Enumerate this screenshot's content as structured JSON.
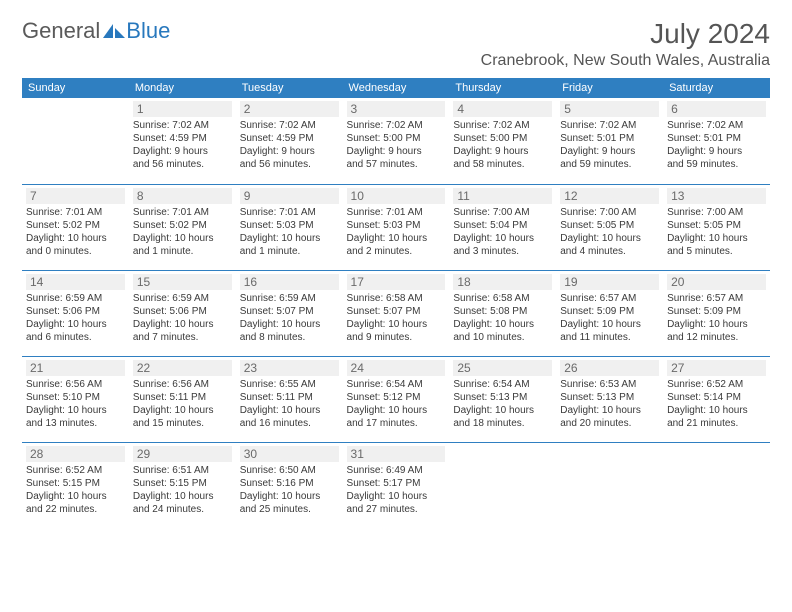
{
  "brand": {
    "name1": "General",
    "name2": "Blue"
  },
  "title": "July 2024",
  "location": "Cranebrook, New South Wales, Australia",
  "colors": {
    "header_bg": "#2f7fc1",
    "header_text": "#ffffff",
    "daynum_bg": "#f0f0f0",
    "border": "#2f7fc1",
    "brand_blue": "#2878bd",
    "text": "#333333"
  },
  "weekdays": [
    "Sunday",
    "Monday",
    "Tuesday",
    "Wednesday",
    "Thursday",
    "Friday",
    "Saturday"
  ],
  "weeks": [
    [
      null,
      {
        "n": "1",
        "sr": "Sunrise: 7:02 AM",
        "ss": "Sunset: 4:59 PM",
        "dl1": "Daylight: 9 hours",
        "dl2": "and 56 minutes."
      },
      {
        "n": "2",
        "sr": "Sunrise: 7:02 AM",
        "ss": "Sunset: 4:59 PM",
        "dl1": "Daylight: 9 hours",
        "dl2": "and 56 minutes."
      },
      {
        "n": "3",
        "sr": "Sunrise: 7:02 AM",
        "ss": "Sunset: 5:00 PM",
        "dl1": "Daylight: 9 hours",
        "dl2": "and 57 minutes."
      },
      {
        "n": "4",
        "sr": "Sunrise: 7:02 AM",
        "ss": "Sunset: 5:00 PM",
        "dl1": "Daylight: 9 hours",
        "dl2": "and 58 minutes."
      },
      {
        "n": "5",
        "sr": "Sunrise: 7:02 AM",
        "ss": "Sunset: 5:01 PM",
        "dl1": "Daylight: 9 hours",
        "dl2": "and 59 minutes."
      },
      {
        "n": "6",
        "sr": "Sunrise: 7:02 AM",
        "ss": "Sunset: 5:01 PM",
        "dl1": "Daylight: 9 hours",
        "dl2": "and 59 minutes."
      }
    ],
    [
      {
        "n": "7",
        "sr": "Sunrise: 7:01 AM",
        "ss": "Sunset: 5:02 PM",
        "dl1": "Daylight: 10 hours",
        "dl2": "and 0 minutes."
      },
      {
        "n": "8",
        "sr": "Sunrise: 7:01 AM",
        "ss": "Sunset: 5:02 PM",
        "dl1": "Daylight: 10 hours",
        "dl2": "and 1 minute."
      },
      {
        "n": "9",
        "sr": "Sunrise: 7:01 AM",
        "ss": "Sunset: 5:03 PM",
        "dl1": "Daylight: 10 hours",
        "dl2": "and 1 minute."
      },
      {
        "n": "10",
        "sr": "Sunrise: 7:01 AM",
        "ss": "Sunset: 5:03 PM",
        "dl1": "Daylight: 10 hours",
        "dl2": "and 2 minutes."
      },
      {
        "n": "11",
        "sr": "Sunrise: 7:00 AM",
        "ss": "Sunset: 5:04 PM",
        "dl1": "Daylight: 10 hours",
        "dl2": "and 3 minutes."
      },
      {
        "n": "12",
        "sr": "Sunrise: 7:00 AM",
        "ss": "Sunset: 5:05 PM",
        "dl1": "Daylight: 10 hours",
        "dl2": "and 4 minutes."
      },
      {
        "n": "13",
        "sr": "Sunrise: 7:00 AM",
        "ss": "Sunset: 5:05 PM",
        "dl1": "Daylight: 10 hours",
        "dl2": "and 5 minutes."
      }
    ],
    [
      {
        "n": "14",
        "sr": "Sunrise: 6:59 AM",
        "ss": "Sunset: 5:06 PM",
        "dl1": "Daylight: 10 hours",
        "dl2": "and 6 minutes."
      },
      {
        "n": "15",
        "sr": "Sunrise: 6:59 AM",
        "ss": "Sunset: 5:06 PM",
        "dl1": "Daylight: 10 hours",
        "dl2": "and 7 minutes."
      },
      {
        "n": "16",
        "sr": "Sunrise: 6:59 AM",
        "ss": "Sunset: 5:07 PM",
        "dl1": "Daylight: 10 hours",
        "dl2": "and 8 minutes."
      },
      {
        "n": "17",
        "sr": "Sunrise: 6:58 AM",
        "ss": "Sunset: 5:07 PM",
        "dl1": "Daylight: 10 hours",
        "dl2": "and 9 minutes."
      },
      {
        "n": "18",
        "sr": "Sunrise: 6:58 AM",
        "ss": "Sunset: 5:08 PM",
        "dl1": "Daylight: 10 hours",
        "dl2": "and 10 minutes."
      },
      {
        "n": "19",
        "sr": "Sunrise: 6:57 AM",
        "ss": "Sunset: 5:09 PM",
        "dl1": "Daylight: 10 hours",
        "dl2": "and 11 minutes."
      },
      {
        "n": "20",
        "sr": "Sunrise: 6:57 AM",
        "ss": "Sunset: 5:09 PM",
        "dl1": "Daylight: 10 hours",
        "dl2": "and 12 minutes."
      }
    ],
    [
      {
        "n": "21",
        "sr": "Sunrise: 6:56 AM",
        "ss": "Sunset: 5:10 PM",
        "dl1": "Daylight: 10 hours",
        "dl2": "and 13 minutes."
      },
      {
        "n": "22",
        "sr": "Sunrise: 6:56 AM",
        "ss": "Sunset: 5:11 PM",
        "dl1": "Daylight: 10 hours",
        "dl2": "and 15 minutes."
      },
      {
        "n": "23",
        "sr": "Sunrise: 6:55 AM",
        "ss": "Sunset: 5:11 PM",
        "dl1": "Daylight: 10 hours",
        "dl2": "and 16 minutes."
      },
      {
        "n": "24",
        "sr": "Sunrise: 6:54 AM",
        "ss": "Sunset: 5:12 PM",
        "dl1": "Daylight: 10 hours",
        "dl2": "and 17 minutes."
      },
      {
        "n": "25",
        "sr": "Sunrise: 6:54 AM",
        "ss": "Sunset: 5:13 PM",
        "dl1": "Daylight: 10 hours",
        "dl2": "and 18 minutes."
      },
      {
        "n": "26",
        "sr": "Sunrise: 6:53 AM",
        "ss": "Sunset: 5:13 PM",
        "dl1": "Daylight: 10 hours",
        "dl2": "and 20 minutes."
      },
      {
        "n": "27",
        "sr": "Sunrise: 6:52 AM",
        "ss": "Sunset: 5:14 PM",
        "dl1": "Daylight: 10 hours",
        "dl2": "and 21 minutes."
      }
    ],
    [
      {
        "n": "28",
        "sr": "Sunrise: 6:52 AM",
        "ss": "Sunset: 5:15 PM",
        "dl1": "Daylight: 10 hours",
        "dl2": "and 22 minutes."
      },
      {
        "n": "29",
        "sr": "Sunrise: 6:51 AM",
        "ss": "Sunset: 5:15 PM",
        "dl1": "Daylight: 10 hours",
        "dl2": "and 24 minutes."
      },
      {
        "n": "30",
        "sr": "Sunrise: 6:50 AM",
        "ss": "Sunset: 5:16 PM",
        "dl1": "Daylight: 10 hours",
        "dl2": "and 25 minutes."
      },
      {
        "n": "31",
        "sr": "Sunrise: 6:49 AM",
        "ss": "Sunset: 5:17 PM",
        "dl1": "Daylight: 10 hours",
        "dl2": "and 27 minutes."
      },
      null,
      null,
      null
    ]
  ]
}
